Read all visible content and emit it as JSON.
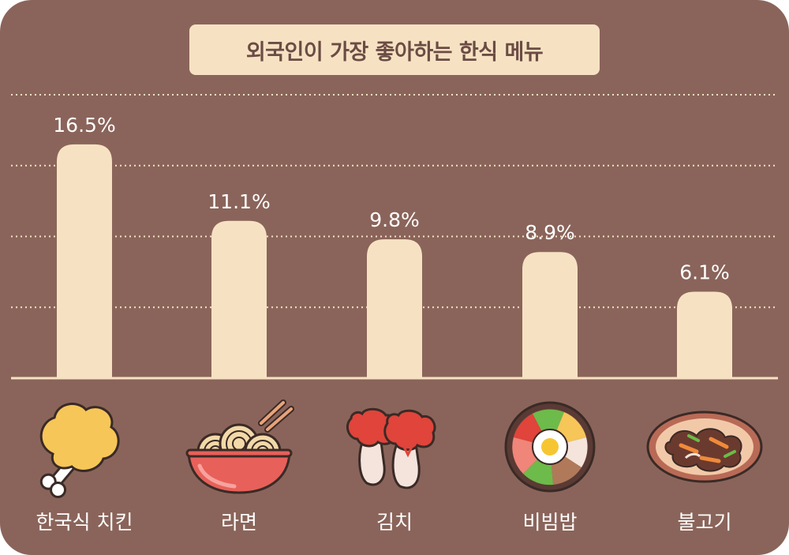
{
  "chart_data": {
    "type": "bar",
    "title": "외국인이 가장 좋아하는 한식 메뉴",
    "categories": [
      "한국식 치킨",
      "라면",
      "김치",
      "비빔밥",
      "불고기"
    ],
    "values": [
      16.5,
      11.1,
      9.8,
      8.9,
      6.1
    ],
    "value_labels": [
      "16.5%",
      "11.1%",
      "9.8%",
      "8.9%",
      "6.1%"
    ],
    "icons": [
      "fried-chicken-icon",
      "ramen-bowl-icon",
      "kimchi-icon",
      "bibimbap-icon",
      "bulgogi-icon"
    ],
    "xlabel": "",
    "ylabel": "",
    "ylim": [
      0,
      20
    ],
    "grid": true
  },
  "colors": {
    "background": "#8a645a",
    "bar": "#f6e2c3",
    "title_box": "#f6e2c3",
    "title_text": "#6b4c44",
    "label_text": "#ffffff",
    "grid": "#f6e2c3"
  }
}
